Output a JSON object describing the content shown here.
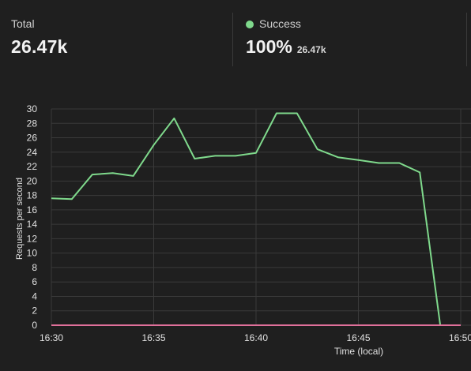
{
  "stats": {
    "total": {
      "label": "Total",
      "value": "26.47k"
    },
    "success": {
      "label": "Success",
      "percent": "100%",
      "count": "26.47k",
      "color": "#7fd98c"
    }
  },
  "chart_data": {
    "type": "line",
    "xlabel": "Time (local)",
    "ylabel": "Requests per second",
    "x_ticks": [
      "16:30",
      "16:35",
      "16:40",
      "16:45",
      "16:50"
    ],
    "xlim": [
      "16:30",
      "16:50"
    ],
    "ylim": [
      0,
      30
    ],
    "y_ticks": [
      0,
      2,
      4,
      6,
      8,
      10,
      12,
      14,
      16,
      18,
      20,
      22,
      24,
      26,
      28,
      30
    ],
    "grid": true,
    "series": [
      {
        "color": "#7fd98c",
        "points": [
          [
            "16:30",
            17.6
          ],
          [
            "16:31",
            17.5
          ],
          [
            "16:32",
            20.9
          ],
          [
            "16:33",
            21.1
          ],
          [
            "16:34",
            20.7
          ],
          [
            "16:35",
            25.0
          ],
          [
            "16:36",
            28.7
          ],
          [
            "16:37",
            23.1
          ],
          [
            "16:38",
            23.5
          ],
          [
            "16:39",
            23.5
          ],
          [
            "16:40",
            23.9
          ],
          [
            "16:41",
            29.4
          ],
          [
            "16:42",
            29.4
          ],
          [
            "16:43",
            24.4
          ],
          [
            "16:44",
            23.3
          ],
          [
            "16:45",
            22.9
          ],
          [
            "16:46",
            22.5
          ],
          [
            "16:47",
            22.5
          ],
          [
            "16:48",
            21.2
          ],
          [
            "16:49",
            0
          ]
        ]
      },
      {
        "color": "#e0709a",
        "points": [
          [
            "16:30",
            0
          ],
          [
            "16:50",
            0
          ]
        ]
      }
    ]
  }
}
